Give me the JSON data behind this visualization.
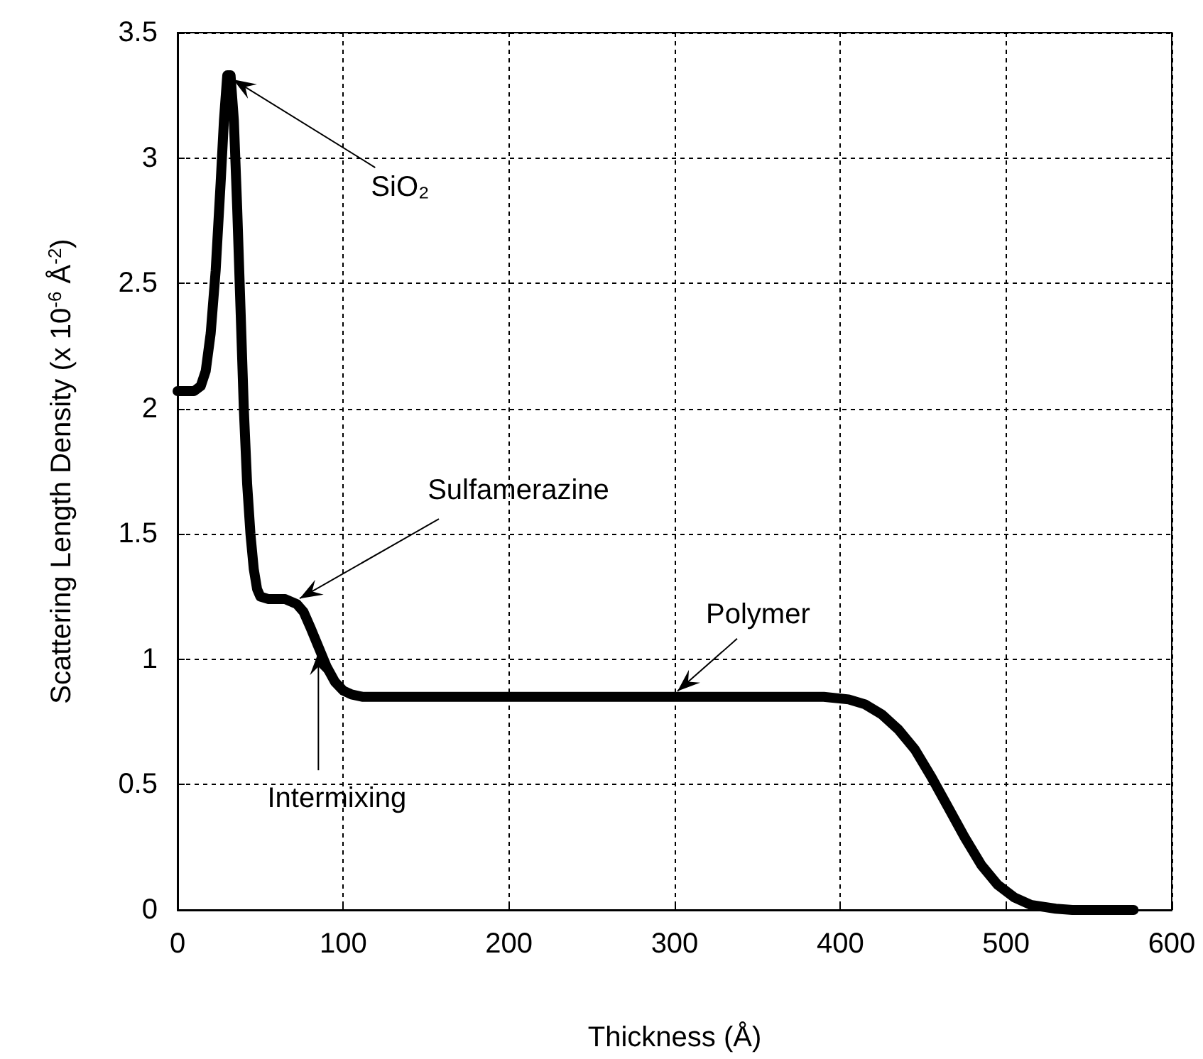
{
  "chart_data": {
    "type": "line",
    "xlabel": "Thickness (Å)",
    "ylabel": "Scattering Length Density (x 10$^{-6}$ Å$^{-2}$)",
    "x": [
      0,
      10,
      14,
      17,
      20,
      23,
      26,
      28,
      30,
      32,
      34,
      36,
      38,
      40,
      42,
      44,
      46,
      48,
      50,
      55,
      65,
      72,
      76,
      80,
      85,
      90,
      95,
      100,
      105,
      112,
      120,
      300,
      390,
      405,
      415,
      425,
      435,
      445,
      455,
      465,
      475,
      485,
      495,
      505,
      515,
      530,
      540,
      577
    ],
    "series": [
      {
        "color": "#000000",
        "values": [
          2.07,
          2.07,
          2.09,
          2.15,
          2.3,
          2.55,
          2.9,
          3.15,
          3.33,
          3.33,
          3.15,
          2.8,
          2.4,
          2.0,
          1.7,
          1.5,
          1.36,
          1.28,
          1.25,
          1.24,
          1.24,
          1.22,
          1.19,
          1.13,
          1.05,
          0.97,
          0.91,
          0.875,
          0.86,
          0.85,
          0.85,
          0.85,
          0.85,
          0.84,
          0.82,
          0.78,
          0.72,
          0.64,
          0.53,
          0.41,
          0.29,
          0.18,
          0.1,
          0.05,
          0.02,
          0.005,
          0,
          0
        ]
      }
    ],
    "xlim": [
      0,
      600
    ],
    "xticks": [
      0,
      100,
      200,
      300,
      400,
      500,
      600
    ],
    "ylim": [
      0,
      3.5
    ],
    "yticks": [
      0,
      0.5,
      1,
      1.5,
      2,
      2.5,
      3,
      3.5
    ],
    "grid": true,
    "line_style": "solid",
    "annotations": [
      {
        "text": "SiO₂",
        "x": 31,
        "y": 3.33
      },
      {
        "text": "Sulfamerazine",
        "x": 72,
        "y": 1.22
      },
      {
        "text": "Intermixing",
        "x": 85,
        "y": 1.05
      },
      {
        "text": "Polymer",
        "x": 300,
        "y": 0.85
      }
    ]
  }
}
